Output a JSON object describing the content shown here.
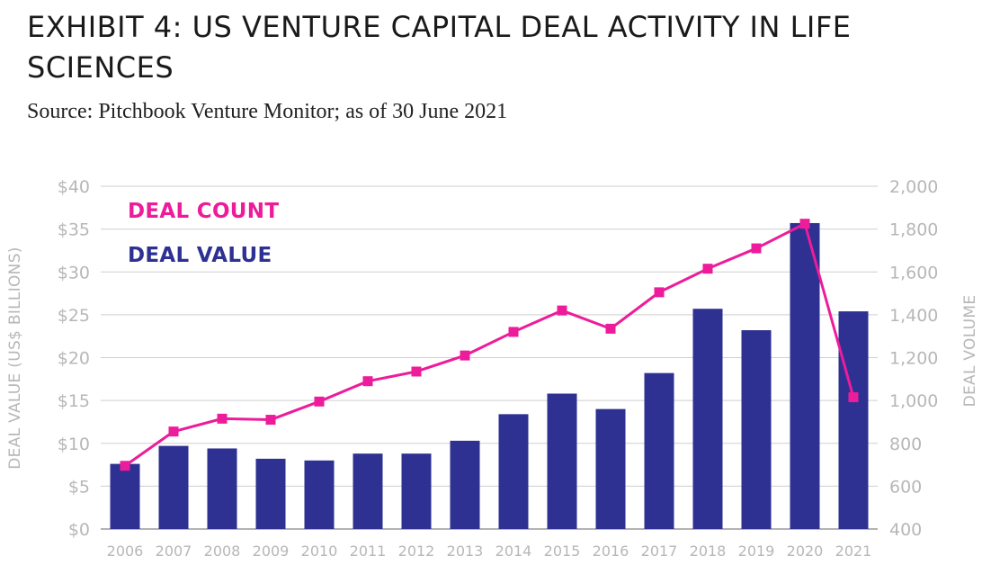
{
  "title": "EXHIBIT 4: US VENTURE CAPITAL DEAL ACTIVITY IN LIFE SCIENCES",
  "subtitle": "Source: Pitchbook Venture Monitor; as of 30 June 2021",
  "colors": {
    "deal_value": "#2e3192",
    "deal_count": "#ec1c9a",
    "grid": "#cfcfcf",
    "tick_text": "#b7b7b7"
  },
  "chart_data": {
    "type": "bar",
    "categories": [
      "2006",
      "2007",
      "2008",
      "2009",
      "2010",
      "2011",
      "2012",
      "2013",
      "2014",
      "2015",
      "2016",
      "2017",
      "2018",
      "2019",
      "2020",
      "2021"
    ],
    "series": [
      {
        "name": "DEAL VALUE",
        "type": "bar",
        "axis": "left",
        "values": [
          7.6,
          9.7,
          9.4,
          8.2,
          8.0,
          8.8,
          8.8,
          10.3,
          13.4,
          15.8,
          14.0,
          18.2,
          25.7,
          23.2,
          35.7,
          25.4
        ]
      },
      {
        "name": "DEAL COUNT",
        "type": "line",
        "axis": "right",
        "values": [
          695,
          855,
          915,
          910,
          995,
          1090,
          1135,
          1210,
          1320,
          1420,
          1335,
          1505,
          1615,
          1710,
          1825,
          1015
        ]
      }
    ],
    "ylabel": "DEAL VALUE (US$ BILLIONS)",
    "y2label": "DEAL VOLUME",
    "ylim": [
      0,
      40
    ],
    "y2lim": [
      400,
      2000
    ],
    "yticks": [
      "$0",
      "$5",
      "$10",
      "$15",
      "$20",
      "$25",
      "$30",
      "$35",
      "$40"
    ],
    "y2ticks": [
      "400",
      "600",
      "800",
      "1,000",
      "1,200",
      "1,400",
      "1,600",
      "1,800",
      "2,000"
    ],
    "grid": true,
    "legend_position": "top-left"
  }
}
